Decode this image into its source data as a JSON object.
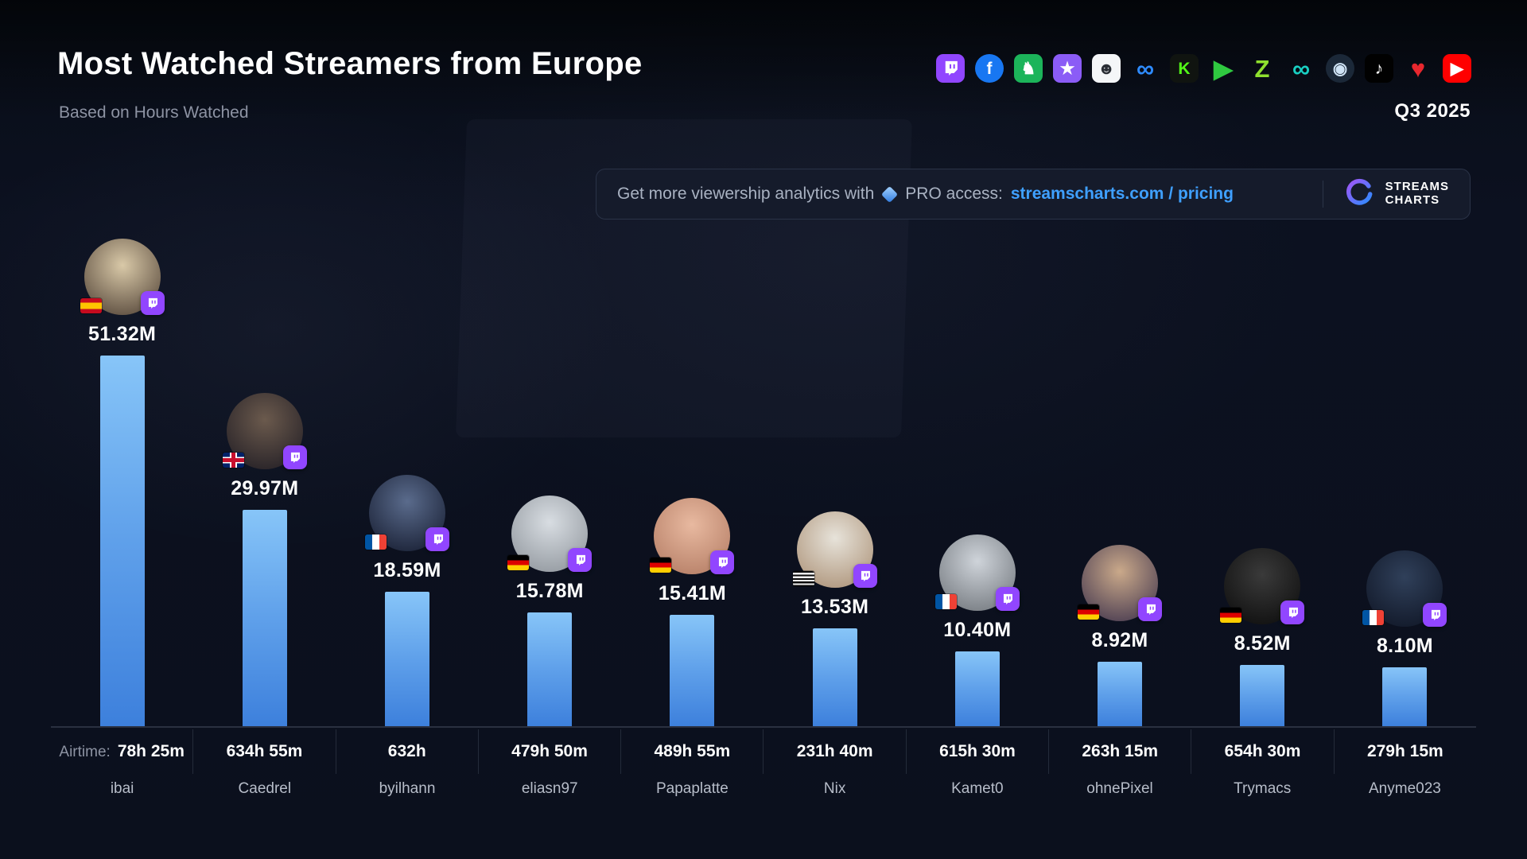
{
  "header": {
    "title": "Most Watched Streamers from Europe",
    "subtitle": "Based on Hours Watched",
    "period": "Q3 2025"
  },
  "promo": {
    "text_before": "Get more viewership analytics with",
    "pro_text": "PRO access:",
    "link": "streamscharts.com / pricing",
    "brand_line1": "STREAMS",
    "brand_line2": "CHARTS"
  },
  "colors": {
    "background": "#0c1120",
    "bar_top": "#87c5f8",
    "bar_bottom": "#3d80dc",
    "link_blue": "#3fa0ff",
    "twitch_purple": "#9146FF",
    "baseline": "#2a3040"
  },
  "platforms": [
    {
      "name": "twitch",
      "svg": "twitch",
      "bg": "#9146FF",
      "fg": "#ffffff"
    },
    {
      "name": "facebook",
      "glyph": "f",
      "bg": "#1877F2",
      "fg": "#ffffff",
      "circle": true
    },
    {
      "name": "trovo",
      "glyph": "♞",
      "bg": "#1CB45A",
      "fg": "#ffffff"
    },
    {
      "name": "star-app",
      "glyph": "★",
      "bg": "#8B5CF6",
      "fg": "#ffffff"
    },
    {
      "name": "face-app",
      "glyph": "☻",
      "bg": "#F4F6F8",
      "fg": "#2A2E35"
    },
    {
      "name": "infinity-blue",
      "glyph": "∞",
      "bg": "transparent",
      "fg": "#2E8BFF",
      "big": true
    },
    {
      "name": "kick",
      "glyph": "K",
      "bg": "#101410",
      "fg": "#53FC18"
    },
    {
      "name": "play-green",
      "glyph": "▶",
      "bg": "transparent",
      "fg": "#2FC940",
      "big": true
    },
    {
      "name": "z-app",
      "glyph": "Z",
      "bg": "transparent",
      "fg": "#8FE02E",
      "big": true
    },
    {
      "name": "infinity-teal",
      "glyph": "∞",
      "bg": "transparent",
      "fg": "#19CFC2",
      "big": true
    },
    {
      "name": "steam",
      "glyph": "◉",
      "bg": "#1B2838",
      "fg": "#CFE3F5",
      "circle": true
    },
    {
      "name": "tiktok",
      "glyph": "♪",
      "bg": "#010101",
      "fg": "#ffffff"
    },
    {
      "name": "heart",
      "glyph": "♥",
      "bg": "transparent",
      "fg": "#E8272E",
      "big": true
    },
    {
      "name": "youtube",
      "glyph": "▶",
      "bg": "#FF0000",
      "fg": "#ffffff"
    }
  ],
  "chart_data": {
    "type": "bar",
    "title": "Most Watched Streamers from Europe",
    "subtitle": "Based on Hours Watched",
    "period": "Q3 2025",
    "unit": "hours watched (millions)",
    "airtime_prefix": "Airtime:",
    "categories": [
      "ibai",
      "Caedrel",
      "byilhann",
      "eliasn97",
      "Papaplatte",
      "Nix",
      "Kamet0",
      "ohnePixel",
      "Trymacs",
      "Anyme023"
    ],
    "values": [
      51.32,
      29.97,
      18.59,
      15.78,
      15.41,
      13.53,
      10.4,
      8.92,
      8.52,
      8.1
    ],
    "streamers": [
      {
        "name": "ibai",
        "hours_watched_label": "51.32M",
        "hours_watched_millions": 51.32,
        "airtime": "78h 25m",
        "flag": "es",
        "platform": "twitch",
        "avatar_colors": [
          "#d9c9a8",
          "#4a3b30"
        ]
      },
      {
        "name": "Caedrel",
        "hours_watched_label": "29.97M",
        "hours_watched_millions": 29.97,
        "airtime": "634h 55m",
        "flag": "gb",
        "platform": "twitch",
        "avatar_colors": [
          "#6b5a4d",
          "#1d1a22"
        ]
      },
      {
        "name": "byilhann",
        "hours_watched_label": "18.59M",
        "hours_watched_millions": 18.59,
        "airtime": "632h",
        "flag": "fr",
        "platform": "twitch",
        "avatar_colors": [
          "#5a6b8c",
          "#12182b"
        ]
      },
      {
        "name": "eliasn97",
        "hours_watched_label": "15.78M",
        "hours_watched_millions": 15.78,
        "airtime": "479h 50m",
        "flag": "de",
        "platform": "twitch",
        "avatar_colors": [
          "#d8dde2",
          "#8a9097"
        ]
      },
      {
        "name": "Papaplatte",
        "hours_watched_label": "15.41M",
        "hours_watched_millions": 15.41,
        "airtime": "489h 55m",
        "flag": "de",
        "platform": "twitch",
        "avatar_colors": [
          "#e8b9a0",
          "#b07860"
        ]
      },
      {
        "name": "Nix",
        "hours_watched_label": "13.53M",
        "hours_watched_millions": 13.53,
        "airtime": "231h 40m",
        "flag": "bzh",
        "platform": "twitch",
        "avatar_colors": [
          "#e7e3da",
          "#a78b6f"
        ]
      },
      {
        "name": "Kamet0",
        "hours_watched_label": "10.40M",
        "hours_watched_millions": 10.4,
        "airtime": "615h 30m",
        "flag": "fr",
        "platform": "twitch",
        "avatar_colors": [
          "#cfd4da",
          "#6b7076"
        ]
      },
      {
        "name": "ohnePixel",
        "hours_watched_label": "8.92M",
        "hours_watched_millions": 8.92,
        "airtime": "263h 15m",
        "flag": "de",
        "platform": "twitch",
        "avatar_colors": [
          "#caa98a",
          "#3a2f4a"
        ]
      },
      {
        "name": "Trymacs",
        "hours_watched_label": "8.52M",
        "hours_watched_millions": 8.52,
        "airtime": "654h 30m",
        "flag": "de",
        "platform": "twitch",
        "avatar_colors": [
          "#3a3a3a",
          "#0a0a0a"
        ]
      },
      {
        "name": "Anyme023",
        "hours_watched_label": "8.10M",
        "hours_watched_millions": 8.1,
        "airtime": "279h 15m",
        "flag": "fr",
        "platform": "twitch",
        "avatar_colors": [
          "#30405a",
          "#0d1322"
        ]
      }
    ]
  }
}
